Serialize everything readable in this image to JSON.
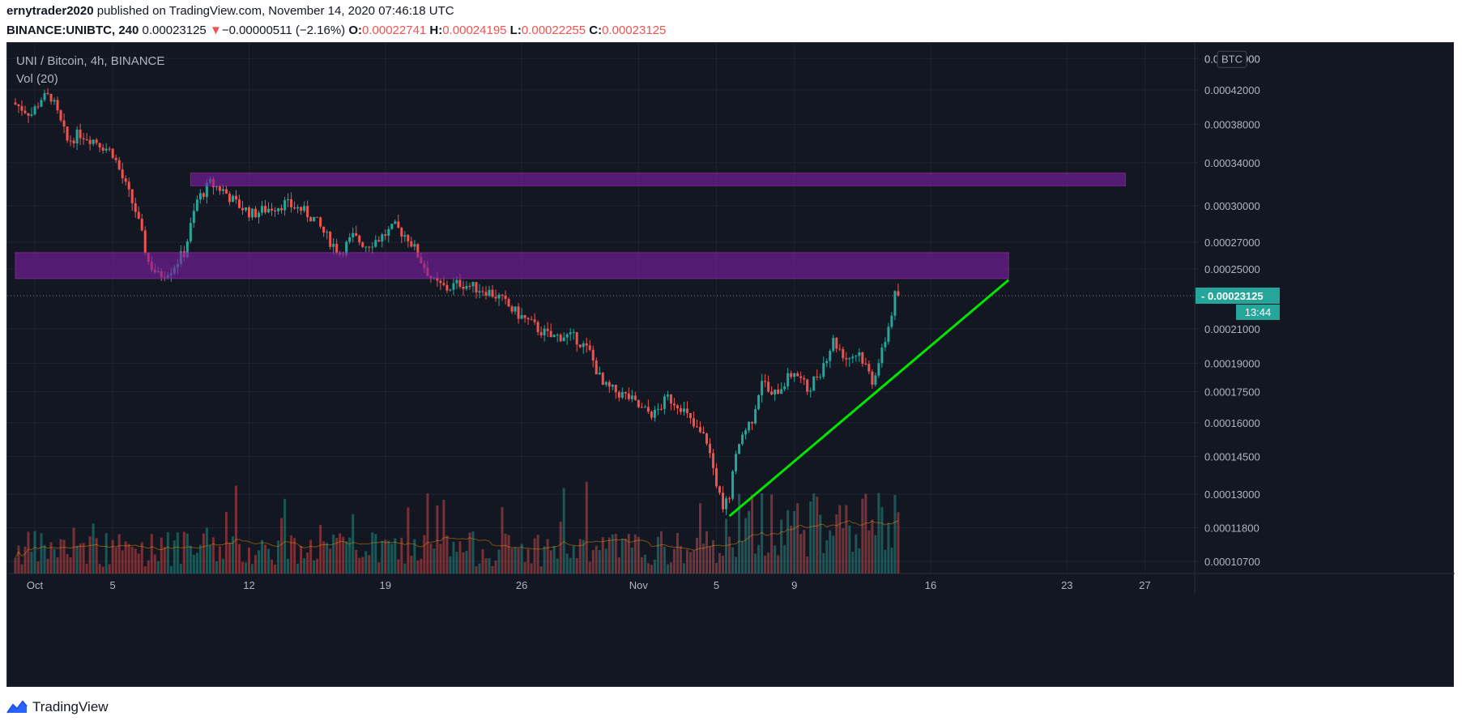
{
  "header": {
    "author": "ernytrader2020",
    "published_text": "published on TradingView.com, November 14, 2020 07:46:18 UTC",
    "symbol": "BINANCE:UNIBTC, 240",
    "last_price": "0.00023125",
    "change_arrow": "▼",
    "change": "−0.00000511 (−2.16%)",
    "o_label": "O:",
    "o_value": "0.00022741",
    "h_label": "H:",
    "h_value": "0.00024195",
    "l_label": "L:",
    "l_value": "0.00022255",
    "c_label": "C:",
    "c_value": "0.00023125"
  },
  "legend": {
    "title": "UNI / Bitcoin, 4h, BINANCE",
    "volume": "Vol (20)"
  },
  "footer": {
    "brand": "TradingView"
  },
  "colors": {
    "background": "#131722",
    "up": "#26a69a",
    "down": "#ef5350",
    "zone": "#7b1fa2",
    "trendline": "#00e600",
    "price_label": "#26a69a"
  },
  "chart_data": {
    "type": "candlestick",
    "scale": "log",
    "currency_label": "BTC",
    "y_ticks": [
      "0.00046000",
      "0.00042000",
      "0.00038000",
      "0.00034000",
      "0.00030000",
      "0.00027000",
      "0.00025000",
      "0.00021000",
      "0.00019000",
      "0.00017500",
      "0.00016000",
      "0.00014500",
      "0.00013000",
      "0.00011800",
      "0.00010700"
    ],
    "y_tick_values": [
      0.00046,
      0.00042,
      0.00038,
      0.00034,
      0.0003,
      0.00027,
      0.00025,
      0.00021,
      0.00019,
      0.000175,
      0.00016,
      0.000145,
      0.00013,
      0.000118,
      0.000107
    ],
    "x_ticks": [
      "Oct",
      "5",
      "12",
      "19",
      "26",
      "Nov",
      "5",
      "9",
      "16",
      "23",
      "27"
    ],
    "x_tick_dates": [
      "2020-10-01",
      "2020-10-05",
      "2020-10-12",
      "2020-10-19",
      "2020-10-26",
      "2020-11-01",
      "2020-11-05",
      "2020-11-09",
      "2020-11-16",
      "2020-11-23",
      "2020-11-27"
    ],
    "current_price": 0.00023125,
    "current_price_label": "0.00023125",
    "countdown": "13:44",
    "price_path": [
      [
        "2020-09-30T00:00",
        0.000405
      ],
      [
        "2020-10-01T00:00",
        0.000392
      ],
      [
        "2020-10-01T12:00",
        0.00041
      ],
      [
        "2020-10-02T00:00",
        0.000412
      ],
      [
        "2020-10-02T20:00",
        0.000362
      ],
      [
        "2020-10-03T12:00",
        0.00037
      ],
      [
        "2020-10-04T08:00",
        0.000362
      ],
      [
        "2020-10-05T04:00",
        0.00035
      ],
      [
        "2020-10-05T16:00",
        0.000325
      ],
      [
        "2020-10-06T08:00",
        0.000296
      ],
      [
        "2020-10-07T00:00",
        0.000255
      ],
      [
        "2020-10-07T12:00",
        0.000245
      ],
      [
        "2020-10-08T04:00",
        0.00025
      ],
      [
        "2020-10-08T20:00",
        0.000262
      ],
      [
        "2020-10-09T12:00",
        0.000305
      ],
      [
        "2020-10-10T04:00",
        0.00032
      ],
      [
        "2020-10-10T20:00",
        0.000314
      ],
      [
        "2020-10-11T12:00",
        0.000302
      ],
      [
        "2020-10-12T08:00",
        0.000293
      ],
      [
        "2020-10-13T04:00",
        0.000298
      ],
      [
        "2020-10-14T00:00",
        0.000302
      ],
      [
        "2020-10-14T20:00",
        0.000297
      ],
      [
        "2020-10-15T12:00",
        0.000289
      ],
      [
        "2020-10-16T04:00",
        0.000274
      ],
      [
        "2020-10-16T20:00",
        0.000262
      ],
      [
        "2020-10-17T12:00",
        0.000274
      ],
      [
        "2020-10-18T04:00",
        0.000268
      ],
      [
        "2020-10-18T20:00",
        0.000273
      ],
      [
        "2020-10-19T16:00",
        0.000282
      ],
      [
        "2020-10-20T08:00",
        0.000274
      ],
      [
        "2020-10-21T00:00",
        0.000256
      ],
      [
        "2020-10-21T16:00",
        0.00024
      ],
      [
        "2020-10-22T08:00",
        0.000236
      ],
      [
        "2020-10-23T00:00",
        0.00024
      ],
      [
        "2020-10-23T16:00",
        0.000237
      ],
      [
        "2020-10-24T08:00",
        0.000235
      ],
      [
        "2020-10-25T00:00",
        0.00023
      ],
      [
        "2020-10-25T16:00",
        0.000222
      ],
      [
        "2020-10-26T08:00",
        0.000216
      ],
      [
        "2020-10-27T00:00",
        0.00021
      ],
      [
        "2020-10-27T16:00",
        0.000205
      ],
      [
        "2020-10-28T08:00",
        0.000206
      ],
      [
        "2020-10-29T00:00",
        0.000204
      ],
      [
        "2020-10-29T16:00",
        0.000196
      ],
      [
        "2020-10-30T08:00",
        0.000178
      ],
      [
        "2020-10-31T00:00",
        0.000175
      ],
      [
        "2020-10-31T16:00",
        0.000172
      ],
      [
        "2020-11-01T08:00",
        0.000166
      ],
      [
        "2020-11-02T00:00",
        0.000164
      ],
      [
        "2020-11-02T16:00",
        0.000172
      ],
      [
        "2020-11-03T08:00",
        0.000168
      ],
      [
        "2020-11-04T00:00",
        0.000158
      ],
      [
        "2020-11-04T16:00",
        0.000152
      ],
      [
        "2020-11-05T00:00",
        0.00014
      ],
      [
        "2020-11-05T12:00",
        0.000124
      ],
      [
        "2020-11-05T20:00",
        0.00013
      ],
      [
        "2020-11-06T08:00",
        0.000152
      ],
      [
        "2020-11-07T00:00",
        0.000162
      ],
      [
        "2020-11-07T12:00",
        0.000182
      ],
      [
        "2020-11-08T00:00",
        0.000172
      ],
      [
        "2020-11-08T12:00",
        0.000178
      ],
      [
        "2020-11-09T04:00",
        0.000186
      ],
      [
        "2020-11-09T20:00",
        0.000176
      ],
      [
        "2020-11-10T12:00",
        0.000186
      ],
      [
        "2020-11-11T04:00",
        0.000203
      ],
      [
        "2020-11-11T20:00",
        0.000193
      ],
      [
        "2020-11-12T12:00",
        0.000196
      ],
      [
        "2020-11-13T04:00",
        0.000181
      ],
      [
        "2020-11-13T16:00",
        0.000196
      ],
      [
        "2020-11-14T04:00",
        0.00022
      ],
      [
        "2020-11-14T08:00",
        0.00023125
      ]
    ],
    "zones": [
      {
        "from": "2020-10-09",
        "to": "2020-11-26",
        "low": 0.000318,
        "high": 0.00033
      },
      {
        "from": "2020-09-30",
        "to": "2020-11-20",
        "low": 0.000243,
        "high": 0.000262
      }
    ],
    "trendline": {
      "start": [
        "2020-11-05T16:00",
        0.000122
      ],
      "end": [
        "2020-11-20T00:00",
        0.000242
      ]
    }
  }
}
